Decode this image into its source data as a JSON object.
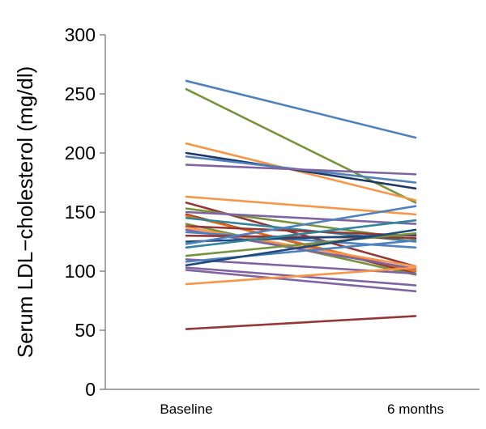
{
  "chart_data": {
    "type": "line",
    "categories": [
      "Baseline",
      "6 months"
    ],
    "ylabel": "Serum LDL−cholesterol (mg/dl)",
    "xlabel": "",
    "ylim": [
      0,
      300
    ],
    "yticks": [
      "0",
      "50",
      "100",
      "150",
      "200",
      "250",
      "300"
    ],
    "grid": false,
    "series": [
      {
        "values": [
          261,
          213
        ],
        "color": "#4f81bd"
      },
      {
        "values": [
          254,
          158
        ],
        "color": "#77933c"
      },
      {
        "values": [
          208,
          160
        ],
        "color": "#f79646"
      },
      {
        "values": [
          200,
          170
        ],
        "color": "#1f3864"
      },
      {
        "values": [
          197,
          175
        ],
        "color": "#4f81bd"
      },
      {
        "values": [
          190,
          182
        ],
        "color": "#8064a2"
      },
      {
        "values": [
          163,
          148
        ],
        "color": "#f79646"
      },
      {
        "values": [
          158,
          104
        ],
        "color": "#953735"
      },
      {
        "values": [
          153,
          127
        ],
        "color": "#77933c"
      },
      {
        "values": [
          150,
          140
        ],
        "color": "#8064a2"
      },
      {
        "values": [
          148,
          98
        ],
        "color": "#953735"
      },
      {
        "values": [
          147,
          100
        ],
        "color": "#e46c0a"
      },
      {
        "values": [
          145,
          125
        ],
        "color": "#31859c"
      },
      {
        "values": [
          140,
          97
        ],
        "color": "#77933c"
      },
      {
        "values": [
          138,
          130
        ],
        "color": "#953735"
      },
      {
        "values": [
          137,
          104
        ],
        "color": "#f79646"
      },
      {
        "values": [
          135,
          102
        ],
        "color": "#8064a2"
      },
      {
        "values": [
          133,
          120
        ],
        "color": "#4f81bd"
      },
      {
        "values": [
          130,
          128
        ],
        "color": "#953735"
      },
      {
        "values": [
          125,
          131
        ],
        "color": "#1f497d"
      },
      {
        "values": [
          123,
          155
        ],
        "color": "#4f81bd"
      },
      {
        "values": [
          120,
          143
        ],
        "color": "#31859c"
      },
      {
        "values": [
          113,
          132
        ],
        "color": "#77933c"
      },
      {
        "values": [
          110,
          98
        ],
        "color": "#8064a2"
      },
      {
        "values": [
          108,
          126
        ],
        "color": "#4f81bd"
      },
      {
        "values": [
          105,
          135
        ],
        "color": "#1f497d"
      },
      {
        "values": [
          103,
          88
        ],
        "color": "#8064a2"
      },
      {
        "values": [
          101,
          83
        ],
        "color": "#8064a2"
      },
      {
        "values": [
          89,
          103
        ],
        "color": "#f79646"
      },
      {
        "values": [
          51,
          62
        ],
        "color": "#953735"
      }
    ]
  }
}
